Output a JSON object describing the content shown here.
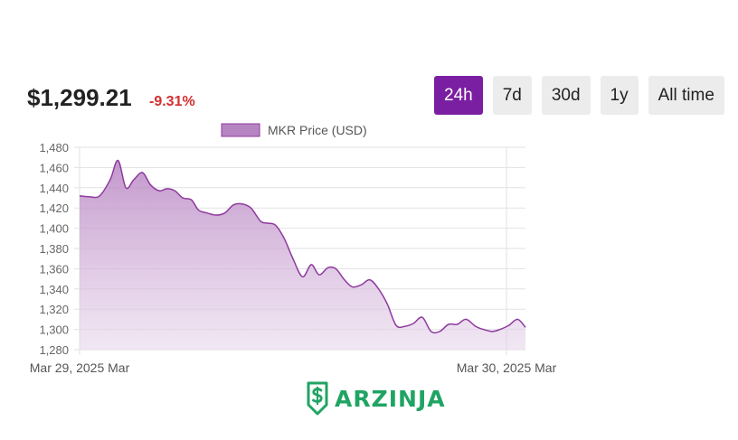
{
  "header": {
    "price": "$1,299.21",
    "change": "-9.31%"
  },
  "range_tabs": [
    {
      "label": "24h",
      "active": true
    },
    {
      "label": "7d",
      "active": false
    },
    {
      "label": "30d",
      "active": false
    },
    {
      "label": "1y",
      "active": false
    },
    {
      "label": "All time",
      "active": false
    }
  ],
  "colors": {
    "accent": "#7b1fa2",
    "line": "#8e3a9e",
    "fill": "#c99ad2",
    "negative": "#d32f2f",
    "brand": "#20a463"
  },
  "chart_data": {
    "type": "area",
    "legend": "MKR Price (USD)",
    "legend_position": "top",
    "grid": true,
    "ylim": [
      1280,
      1480
    ],
    "yticks": [
      1280,
      1300,
      1320,
      1340,
      1360,
      1380,
      1400,
      1420,
      1440,
      1460,
      1480
    ],
    "ytick_labels": [
      "1,280",
      "1,300",
      "1,320",
      "1,340",
      "1,360",
      "1,380",
      "1,400",
      "1,420",
      "1,440",
      "1,460",
      "1,480"
    ],
    "xtick_labels": [
      "Mar 29, 2025 Mar",
      "Mar 30, 2025 Mar"
    ],
    "x": [
      0,
      1.2,
      2.3,
      3.5,
      4.4,
      5.3,
      6.2,
      7.2,
      8.1,
      9.1,
      10.0,
      10.9,
      11.8,
      12.8,
      13.6,
      14.6,
      15.6,
      16.6,
      17.6,
      18.6,
      19.6,
      20.7,
      21.5,
      22.4,
      23.4,
      24.4,
      25.5,
      26.5,
      27.4,
      28.4,
      29.3,
      30.3,
      31.2,
      32.2,
      33.2,
      34.2,
      35.2,
      36.2,
      37.2,
      38.2,
      39.2,
      40.2,
      41.2,
      42.2,
      43.2,
      44.2,
      45.3,
      46.2,
      47.2,
      48.1,
      49.1,
      50.1,
      51.0
    ],
    "y": [
      1432,
      1431,
      1432,
      1448,
      1467,
      1440,
      1448,
      1455,
      1443,
      1437,
      1439,
      1437,
      1430,
      1428,
      1418,
      1415,
      1413,
      1415,
      1423,
      1424,
      1420,
      1407,
      1405,
      1403,
      1390,
      1370,
      1352,
      1364,
      1354,
      1361,
      1360,
      1349,
      1342,
      1344,
      1349,
      1340,
      1325,
      1304,
      1303,
      1306,
      1312,
      1298,
      1298,
      1305,
      1305,
      1310,
      1303,
      1300,
      1298,
      1300,
      1304,
      1310,
      1302
    ]
  }
}
